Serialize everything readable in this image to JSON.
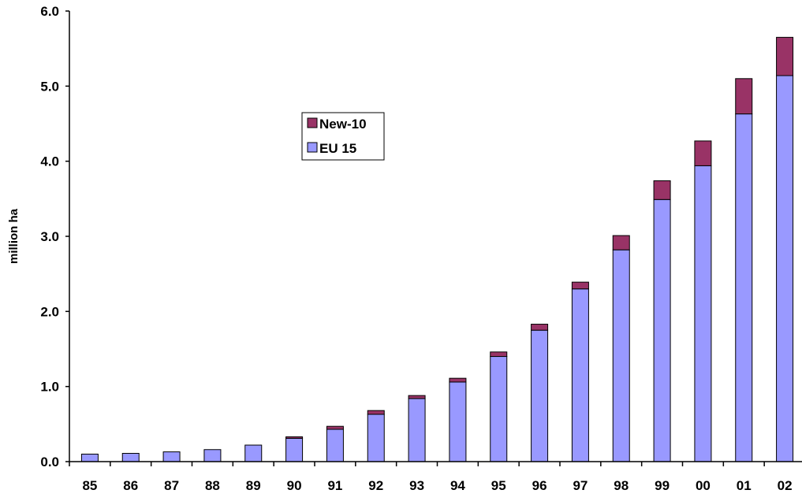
{
  "chart_data": {
    "type": "bar",
    "stacked": true,
    "title": "",
    "xlabel": "",
    "ylabel": "million ha",
    "categories": [
      "85",
      "86",
      "87",
      "88",
      "89",
      "90",
      "91",
      "92",
      "93",
      "94",
      "95",
      "96",
      "97",
      "98",
      "99",
      "00",
      "01",
      "02"
    ],
    "series": [
      {
        "name": "EU 15",
        "color": "#9999ff",
        "values": [
          0.1,
          0.11,
          0.13,
          0.16,
          0.22,
          0.31,
          0.43,
          0.63,
          0.84,
          1.06,
          1.4,
          1.75,
          2.3,
          2.82,
          3.49,
          3.94,
          4.63,
          5.14
        ]
      },
      {
        "name": "New-10",
        "color": "#993366",
        "values": [
          0,
          0,
          0,
          0,
          0,
          0.02,
          0.04,
          0.05,
          0.04,
          0.05,
          0.06,
          0.08,
          0.09,
          0.19,
          0.25,
          0.33,
          0.47,
          0.51
        ]
      }
    ],
    "ylim": [
      0,
      6
    ],
    "yticks": [
      "0.0",
      "1.0",
      "2.0",
      "3.0",
      "4.0",
      "5.0",
      "6.0"
    ],
    "grid": false,
    "legend": {
      "position": "upper-left-center",
      "entries": [
        "New-10",
        "EU 15"
      ]
    }
  }
}
